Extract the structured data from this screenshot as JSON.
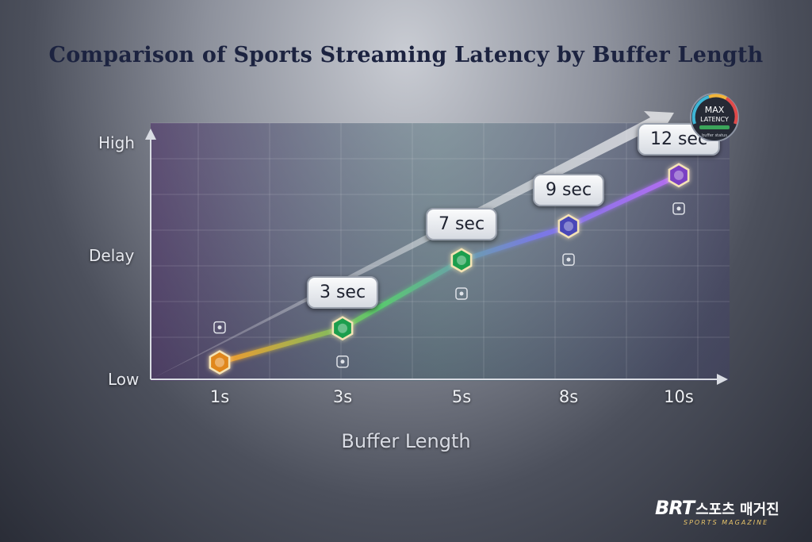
{
  "chart_data": {
    "type": "line",
    "title": "Comparison of Sports Streaming Latency by Buffer Length",
    "xlabel": "Buffer Length",
    "ylabel": "Delay",
    "y_axis_labels": {
      "high": "High",
      "mid": "Delay",
      "low": "Low"
    },
    "categories": [
      "1s",
      "3s",
      "5s",
      "8s",
      "10s"
    ],
    "values": [
      1,
      3,
      7,
      9,
      12
    ],
    "data_labels": [
      "",
      "3 sec",
      "7 sec",
      "9 sec",
      "12 sec"
    ],
    "point_colors": [
      "#e0871f",
      "#1f9e4e",
      "#1f9e4e",
      "#4a47b8",
      "#7a3fc4"
    ],
    "point_icons": [
      "satellite-dish-icon",
      "server-icon",
      "satellite-dish-icon",
      "database-icon",
      "video-player-icon"
    ],
    "grid": true,
    "gauge": {
      "line1": "MAX",
      "line2": "LATENCY",
      "caption": "buffer status"
    }
  },
  "brand": {
    "logo": "BRT",
    "name": "스포츠 매거진",
    "tagline": "SPORTS MAGAZINE"
  }
}
